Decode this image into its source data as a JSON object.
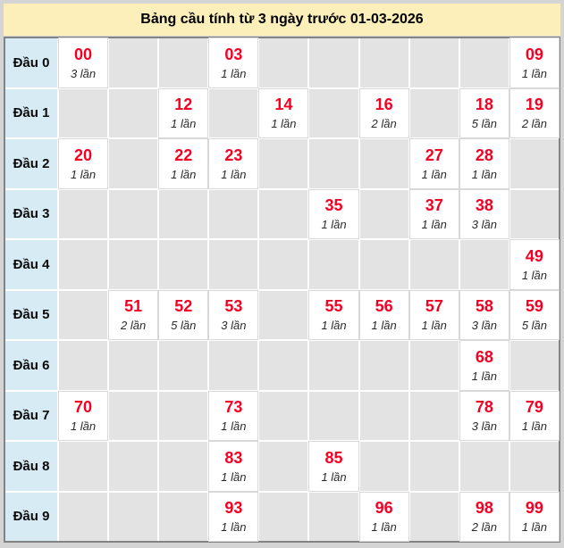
{
  "title": "Bảng cầu tính từ 3 ngày trước 01-03-2026",
  "table": {
    "num_columns": 10,
    "rows": [
      {
        "label": "Đầu 0",
        "cells": [
          {
            "col": 0,
            "number": "00",
            "count": "3 lần"
          },
          {
            "col": 3,
            "number": "03",
            "count": "1 lần"
          },
          {
            "col": 9,
            "number": "09",
            "count": "1 lần"
          }
        ]
      },
      {
        "label": "Đầu 1",
        "cells": [
          {
            "col": 2,
            "number": "12",
            "count": "1 lần"
          },
          {
            "col": 4,
            "number": "14",
            "count": "1 lần"
          },
          {
            "col": 6,
            "number": "16",
            "count": "2 lần"
          },
          {
            "col": 8,
            "number": "18",
            "count": "5 lần"
          },
          {
            "col": 9,
            "number": "19",
            "count": "2 lần"
          }
        ]
      },
      {
        "label": "Đầu 2",
        "cells": [
          {
            "col": 0,
            "number": "20",
            "count": "1 lần"
          },
          {
            "col": 2,
            "number": "22",
            "count": "1 lần"
          },
          {
            "col": 3,
            "number": "23",
            "count": "1 lần"
          },
          {
            "col": 7,
            "number": "27",
            "count": "1 lần"
          },
          {
            "col": 8,
            "number": "28",
            "count": "1 lần"
          }
        ]
      },
      {
        "label": "Đầu 3",
        "cells": [
          {
            "col": 5,
            "number": "35",
            "count": "1 lần"
          },
          {
            "col": 7,
            "number": "37",
            "count": "1 lần"
          },
          {
            "col": 8,
            "number": "38",
            "count": "3 lần"
          }
        ]
      },
      {
        "label": "Đầu 4",
        "cells": [
          {
            "col": 9,
            "number": "49",
            "count": "1 lần"
          }
        ]
      },
      {
        "label": "Đầu 5",
        "cells": [
          {
            "col": 1,
            "number": "51",
            "count": "2 lần"
          },
          {
            "col": 2,
            "number": "52",
            "count": "5 lần"
          },
          {
            "col": 3,
            "number": "53",
            "count": "3 lần"
          },
          {
            "col": 5,
            "number": "55",
            "count": "1 lần"
          },
          {
            "col": 6,
            "number": "56",
            "count": "1 lần"
          },
          {
            "col": 7,
            "number": "57",
            "count": "1 lần"
          },
          {
            "col": 8,
            "number": "58",
            "count": "3 lần"
          },
          {
            "col": 9,
            "number": "59",
            "count": "5 lần"
          }
        ]
      },
      {
        "label": "Đầu 6",
        "cells": [
          {
            "col": 8,
            "number": "68",
            "count": "1 lần"
          }
        ]
      },
      {
        "label": "Đầu 7",
        "cells": [
          {
            "col": 0,
            "number": "70",
            "count": "1 lần"
          },
          {
            "col": 3,
            "number": "73",
            "count": "1 lần"
          },
          {
            "col": 8,
            "number": "78",
            "count": "3 lần"
          },
          {
            "col": 9,
            "number": "79",
            "count": "1 lần"
          }
        ]
      },
      {
        "label": "Đầu 8",
        "cells": [
          {
            "col": 3,
            "number": "83",
            "count": "1 lần"
          },
          {
            "col": 5,
            "number": "85",
            "count": "1 lần"
          }
        ]
      },
      {
        "label": "Đầu 9",
        "cells": [
          {
            "col": 3,
            "number": "93",
            "count": "1 lần"
          },
          {
            "col": 6,
            "number": "96",
            "count": "1 lần"
          },
          {
            "col": 8,
            "number": "98",
            "count": "2 lần"
          },
          {
            "col": 9,
            "number": "99",
            "count": "1 lần"
          }
        ]
      }
    ]
  },
  "colors": {
    "page_margin": "#d4d4d4",
    "title_bg": "#fcefba",
    "label_bg": "#d7ebf5",
    "empty_cell_bg": "#e3e3e3",
    "filled_cell_bg": "#ffffff",
    "number_color": "#f50023",
    "count_color": "#2a2a2a",
    "table_border": "#838383",
    "grid_line": "#ffffff"
  }
}
